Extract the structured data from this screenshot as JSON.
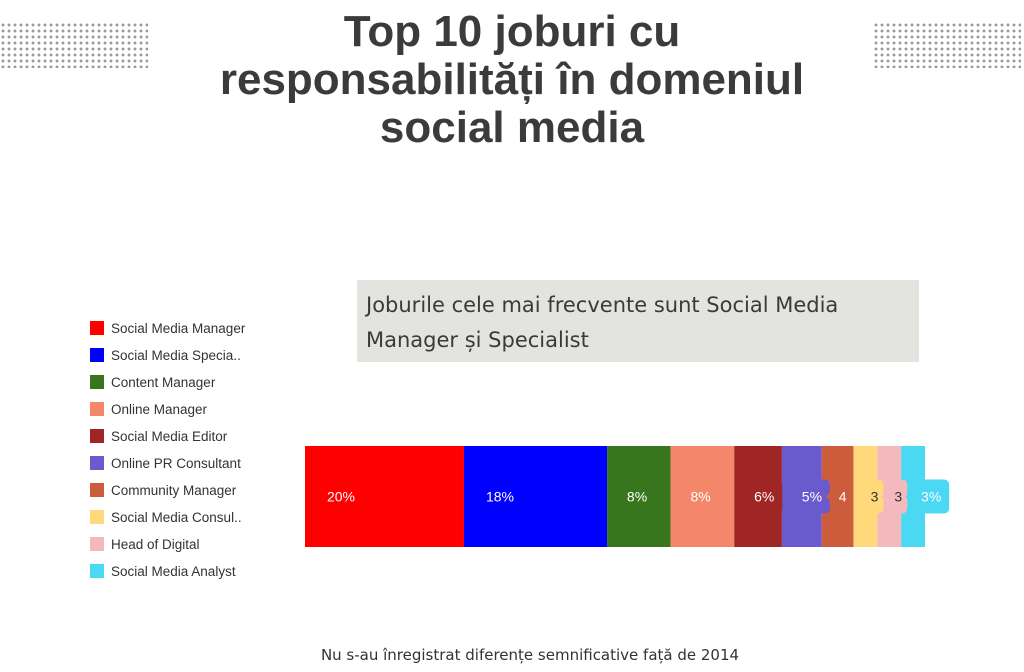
{
  "header": {
    "title_lines": [
      "Top 10 joburi cu",
      "responsabilități în domeniul",
      "social media"
    ]
  },
  "callout": {
    "text": "Joburile cele mai frecvente sunt Social Media Manager și Specialist"
  },
  "footnote": "Nu s-au înregistrat diferențe semnificative față de 2014",
  "chart_data": {
    "type": "bar",
    "stacked": true,
    "orientation": "horizontal",
    "legend_position": "left",
    "categories": [
      "Social Media Manager",
      "Social Media Specia..",
      "Content Manager",
      "Online Manager",
      "Social Media Editor",
      "Online PR Consultant",
      "Community Manager",
      "Social Media Consul..",
      "Head of Digital",
      "Social Media Analyst"
    ],
    "values": [
      20,
      18,
      8,
      8,
      6,
      5,
      4,
      3,
      3,
      3
    ],
    "data_labels": [
      "20%",
      "18%",
      "8%",
      "8%",
      "6%",
      "5%",
      "4",
      "3",
      "3",
      "3%"
    ],
    "colors": [
      "#ff0000",
      "#0000ff",
      "#38761d",
      "#f4876a",
      "#a02525",
      "#6a5acd",
      "#cd5c3c",
      "#ffd97a",
      "#f4b9bc",
      "#4ad8f2"
    ],
    "label_text_colors": [
      "#ffffff",
      "#ffffff",
      "#ffffff",
      "#ffffff",
      "#ffffff",
      "#ffffff",
      "#ffffff",
      "#333333",
      "#333333",
      "#ffffff"
    ]
  }
}
